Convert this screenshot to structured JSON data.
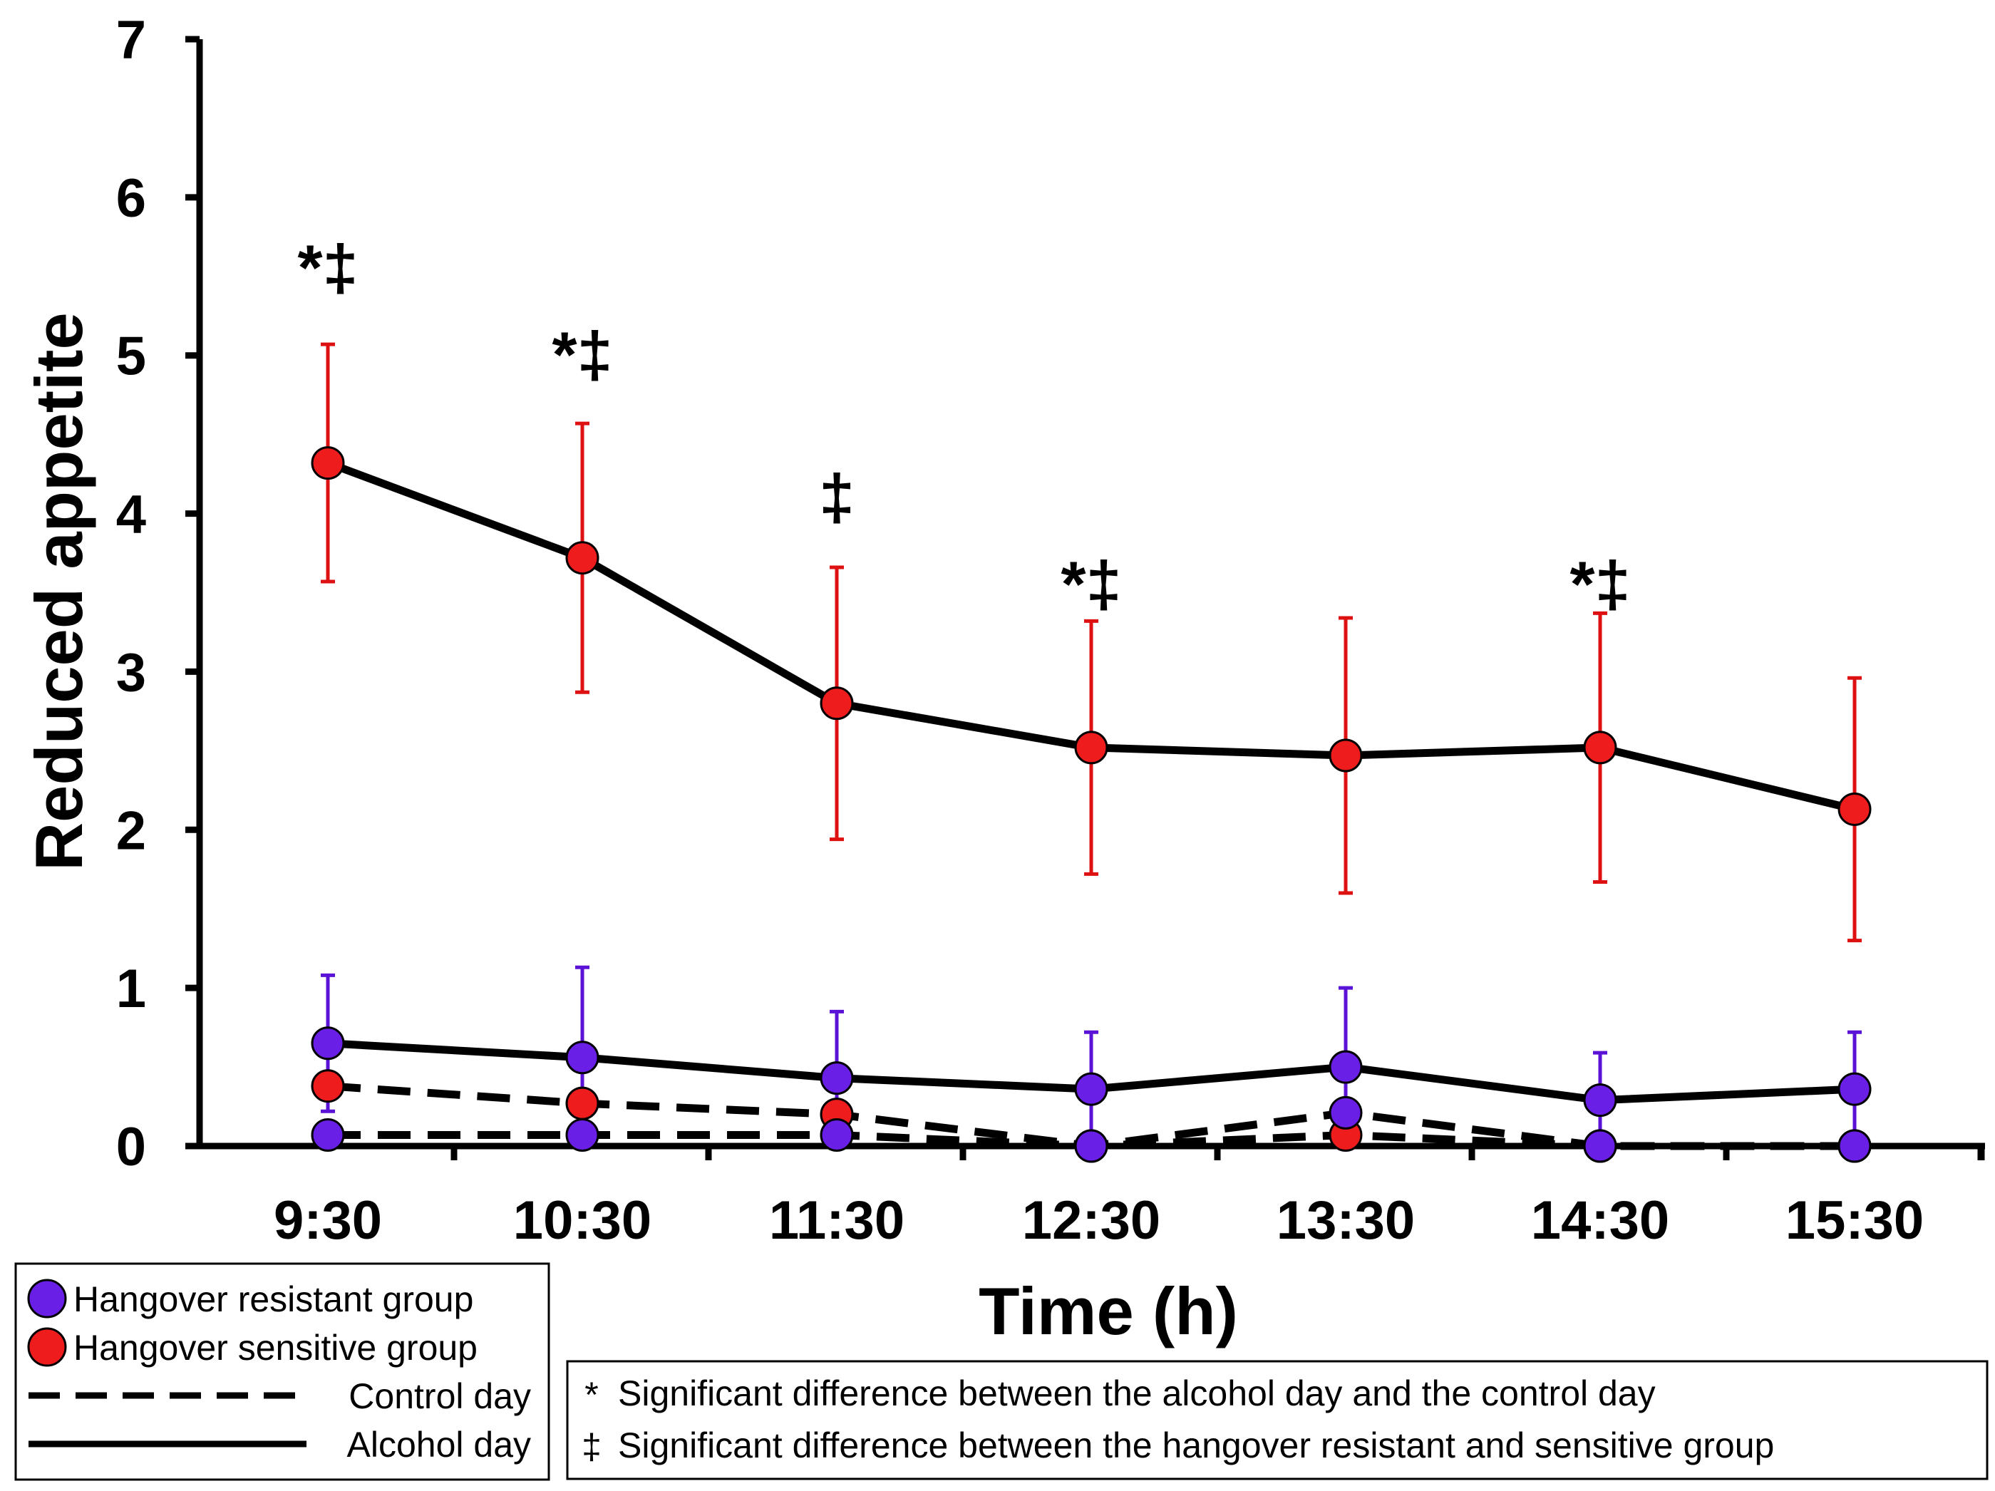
{
  "chart_data": {
    "type": "line",
    "title": "",
    "ylabel": "Reduced appetite",
    "xlabel": "Time (h)",
    "ylim": [
      0,
      7
    ],
    "yticks": [
      0,
      1,
      2,
      3,
      4,
      5,
      6,
      7
    ],
    "categories": [
      "9:30",
      "10:30",
      "11:30",
      "12:30",
      "13:30",
      "14:30",
      "15:30"
    ],
    "series": [
      {
        "name": "Hangover sensitive group - Alcohol day",
        "group": "sensitive",
        "day": "alcohol",
        "color": "#ee1c1c",
        "error_color": "#dd1111",
        "values": [
          4.32,
          3.72,
          2.8,
          2.52,
          2.47,
          2.52,
          2.13
        ],
        "errors": [
          0.75,
          0.85,
          0.86,
          0.8,
          0.87,
          0.85,
          0.83
        ]
      },
      {
        "name": "Hangover resistant group - Alcohol day",
        "group": "resistant",
        "day": "alcohol",
        "color": "#6a1fe6",
        "error_color": "#5a12d6",
        "values": [
          0.65,
          0.56,
          0.43,
          0.36,
          0.5,
          0.29,
          0.36
        ],
        "errors": [
          0.43,
          0.57,
          0.42,
          0.36,
          0.5,
          0.3,
          0.36
        ]
      },
      {
        "name": "Hangover sensitive group - Control day",
        "group": "sensitive",
        "day": "control",
        "color": "#ee1c1c",
        "error_color": "#dd1111",
        "values": [
          0.38,
          0.27,
          0.2,
          0.0,
          0.07,
          0.0,
          0.0
        ],
        "errors": [
          0,
          0,
          0,
          0,
          0,
          0,
          0
        ]
      },
      {
        "name": "Hangover resistant group - Control day",
        "group": "resistant",
        "day": "control",
        "color": "#6a1fe6",
        "error_color": "#5a12d6",
        "values": [
          0.07,
          0.07,
          0.07,
          0.0,
          0.21,
          0.0,
          0.0
        ],
        "errors": [
          0,
          0,
          0,
          0,
          0,
          0,
          0
        ]
      }
    ],
    "annotations": [
      {
        "category": "9:30",
        "text": "*‡",
        "y": 5.55
      },
      {
        "category": "10:30",
        "text": "*‡",
        "y": 5.0
      },
      {
        "category": "11:30",
        "text": "‡",
        "y": 4.1
      },
      {
        "category": "12:30",
        "text": "*‡",
        "y": 3.55
      },
      {
        "category": "14:30",
        "text": "*‡",
        "y": 3.55
      }
    ],
    "legend": {
      "position": "bottom-left",
      "items": [
        {
          "label": "Hangover resistant group",
          "kind": "marker",
          "color": "#6a1fe6"
        },
        {
          "label": "Hangover sensitive group",
          "kind": "marker",
          "color": "#ee1c1c"
        },
        {
          "label": "Control day",
          "kind": "dashed-line"
        },
        {
          "label": "Alcohol day",
          "kind": "solid-line"
        }
      ]
    },
    "notes": [
      {
        "symbol": "*",
        "text": "Significant difference between the alcohol day and the control day"
      },
      {
        "symbol": "‡",
        "text": "Significant difference between the hangover resistant and sensitive group"
      }
    ]
  }
}
